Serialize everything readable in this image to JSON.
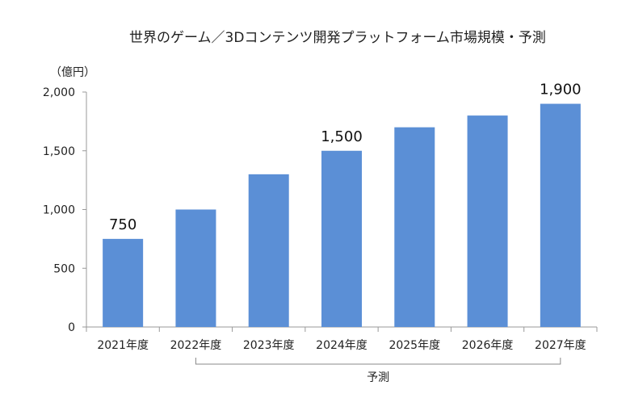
{
  "chart_data": {
    "type": "bar",
    "title": "世界のゲーム／3Dコンテンツ開発プラットフォーム市場規模・予測",
    "unit_label": "（億円）",
    "categories": [
      "2021年度",
      "2022年度",
      "2023年度",
      "2024年度",
      "2025年度",
      "2026年度",
      "2027年度"
    ],
    "values": [
      750,
      1000,
      1300,
      1500,
      1700,
      1800,
      1900
    ],
    "data_labels": [
      {
        "index": 0,
        "text": "750"
      },
      {
        "index": 3,
        "text": "1,500"
      },
      {
        "index": 6,
        "text": "1,900"
      }
    ],
    "y_ticks": [
      {
        "value": 0,
        "label": "0"
      },
      {
        "value": 500,
        "label": "500"
      },
      {
        "value": 1000,
        "label": "1,000"
      },
      {
        "value": 1500,
        "label": "1,500"
      },
      {
        "value": 2000,
        "label": "2,000"
      }
    ],
    "ylim": [
      0,
      2000
    ],
    "grid": false,
    "bar_color": "#5b8fd6",
    "forecast": {
      "label": "予測",
      "from_index": 1,
      "to_index": 6
    }
  }
}
